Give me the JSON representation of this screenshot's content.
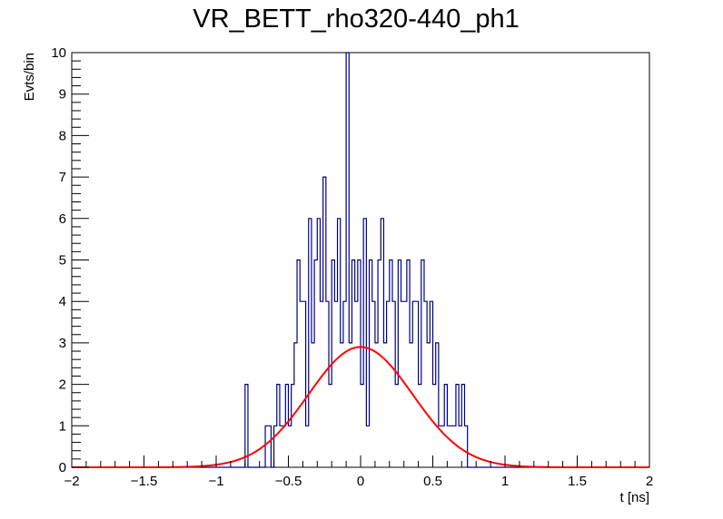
{
  "chart_data": {
    "type": "bar",
    "title": "VR_BETT_rho320-440_ph1",
    "xlabel": "t [ns]",
    "ylabel": "Evts/bin",
    "xlim": [
      -2,
      2
    ],
    "ylim": [
      0,
      10
    ],
    "grid": false,
    "x_ticks": [
      "−2",
      "−1.5",
      "−1",
      "−0.5",
      "0",
      "0.5",
      "1",
      "1.5",
      "2"
    ],
    "y_ticks": [
      "0",
      "1",
      "2",
      "3",
      "4",
      "5",
      "6",
      "7",
      "8",
      "9",
      "10"
    ],
    "bin_width": 0.02,
    "series": [
      {
        "kind": "histogram",
        "color": "#000080",
        "x": [
          -0.79,
          -0.65,
          -0.63,
          -0.59,
          -0.57,
          -0.55,
          -0.53,
          -0.51,
          -0.49,
          -0.47,
          -0.45,
          -0.43,
          -0.41,
          -0.39,
          -0.37,
          -0.35,
          -0.33,
          -0.31,
          -0.29,
          -0.27,
          -0.25,
          -0.23,
          -0.21,
          -0.19,
          -0.17,
          -0.15,
          -0.13,
          -0.11,
          -0.09,
          -0.07,
          -0.05,
          -0.03,
          -0.01,
          0.01,
          0.03,
          0.05,
          0.07,
          0.09,
          0.11,
          0.13,
          0.15,
          0.17,
          0.19,
          0.21,
          0.23,
          0.25,
          0.27,
          0.29,
          0.31,
          0.33,
          0.35,
          0.37,
          0.39,
          0.41,
          0.43,
          0.45,
          0.47,
          0.49,
          0.51,
          0.53,
          0.55,
          0.57,
          0.59,
          0.61,
          0.63,
          0.65,
          0.67,
          0.69,
          0.71,
          0.73
        ],
        "values": [
          2,
          1,
          1,
          1,
          2,
          1,
          1,
          2,
          1,
          2,
          3,
          5,
          4,
          4,
          1,
          6,
          3,
          5,
          6,
          4,
          7,
          4,
          2,
          5,
          4,
          6,
          3,
          4,
          10,
          3,
          5,
          4,
          5,
          2,
          6,
          1,
          5,
          4,
          3,
          5,
          6,
          3,
          4,
          5,
          4,
          2,
          5,
          4,
          4,
          5,
          3,
          4,
          4,
          2,
          5,
          4,
          3,
          4,
          2,
          3,
          1,
          1,
          2,
          1,
          1,
          1,
          2,
          1,
          2,
          1
        ]
      },
      {
        "kind": "fit-curve",
        "color": "#ff0000",
        "function": "gaussian",
        "amplitude": 2.9,
        "mean": 0.0,
        "sigma": 0.36
      }
    ]
  }
}
